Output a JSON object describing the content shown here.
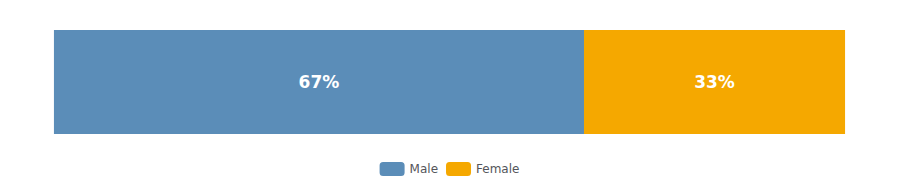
{
  "chart_data": {
    "type": "bar",
    "orientation": "horizontal",
    "stacked": true,
    "categories": [
      null
    ],
    "series": [
      {
        "name": "Male",
        "color": "#5B8DB8",
        "values": [
          67
        ],
        "value_labels": [
          "67%"
        ]
      },
      {
        "name": "Female",
        "color": "#F5A800",
        "values": [
          33
        ],
        "value_labels": [
          "33%"
        ]
      }
    ],
    "xlim": [
      0,
      100
    ],
    "data_labels": true,
    "tick_labels": false,
    "grid": false,
    "legend": "bottom"
  }
}
